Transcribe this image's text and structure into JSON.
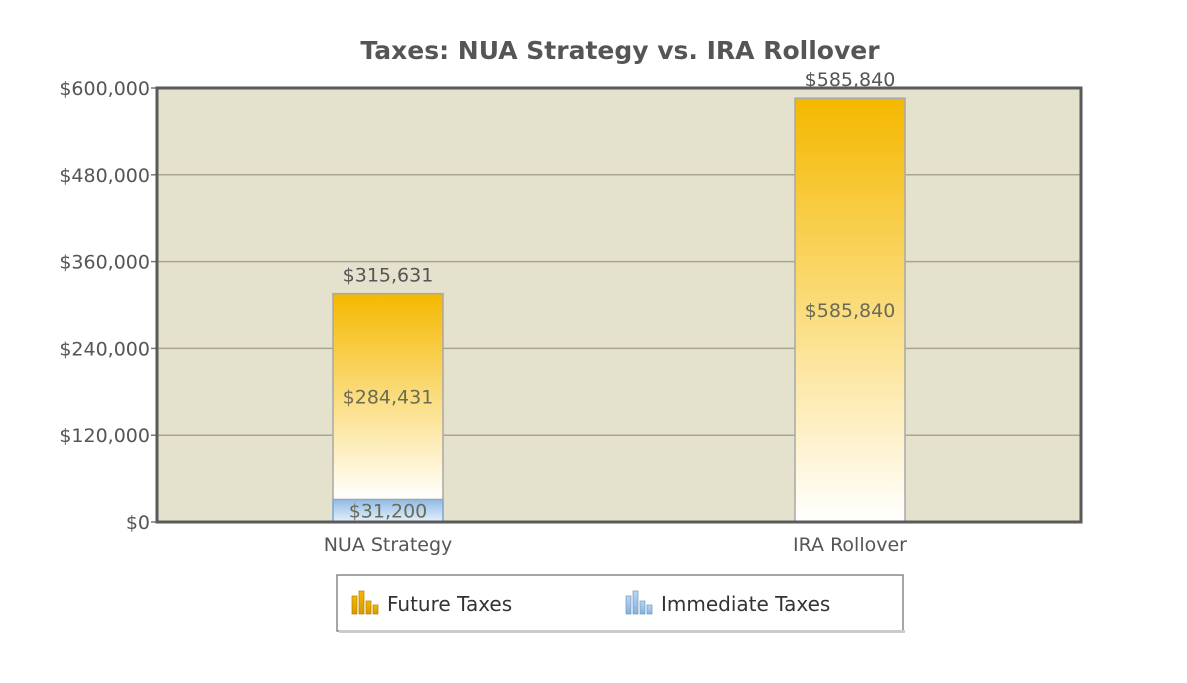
{
  "chart_data": {
    "type": "bar",
    "stacked": true,
    "title": "Taxes: NUA Strategy vs. IRA Rollover",
    "categories": [
      "NUA Strategy",
      "IRA Rollover"
    ],
    "series": [
      {
        "name": "Future Taxes",
        "values": [
          284431,
          585840
        ],
        "labels": [
          "$284,431",
          "$585,840"
        ],
        "color": "#f5b800"
      },
      {
        "name": "Immediate Taxes",
        "values": [
          31200,
          0
        ],
        "labels": [
          "$31,200",
          ""
        ],
        "color": "#a9cbea"
      }
    ],
    "totals": [
      315631,
      585840
    ],
    "total_labels": [
      "$315,631",
      "$585,840"
    ],
    "ylim": [
      0,
      600000
    ],
    "yticks": [
      0,
      120000,
      240000,
      360000,
      480000,
      600000
    ],
    "ytick_labels": [
      "$0",
      "$120,000",
      "$240,000",
      "$360,000",
      "$480,000",
      "$600,000"
    ],
    "grid": true,
    "legend_position": "bottom",
    "plot_background": "#e4e1cc"
  }
}
